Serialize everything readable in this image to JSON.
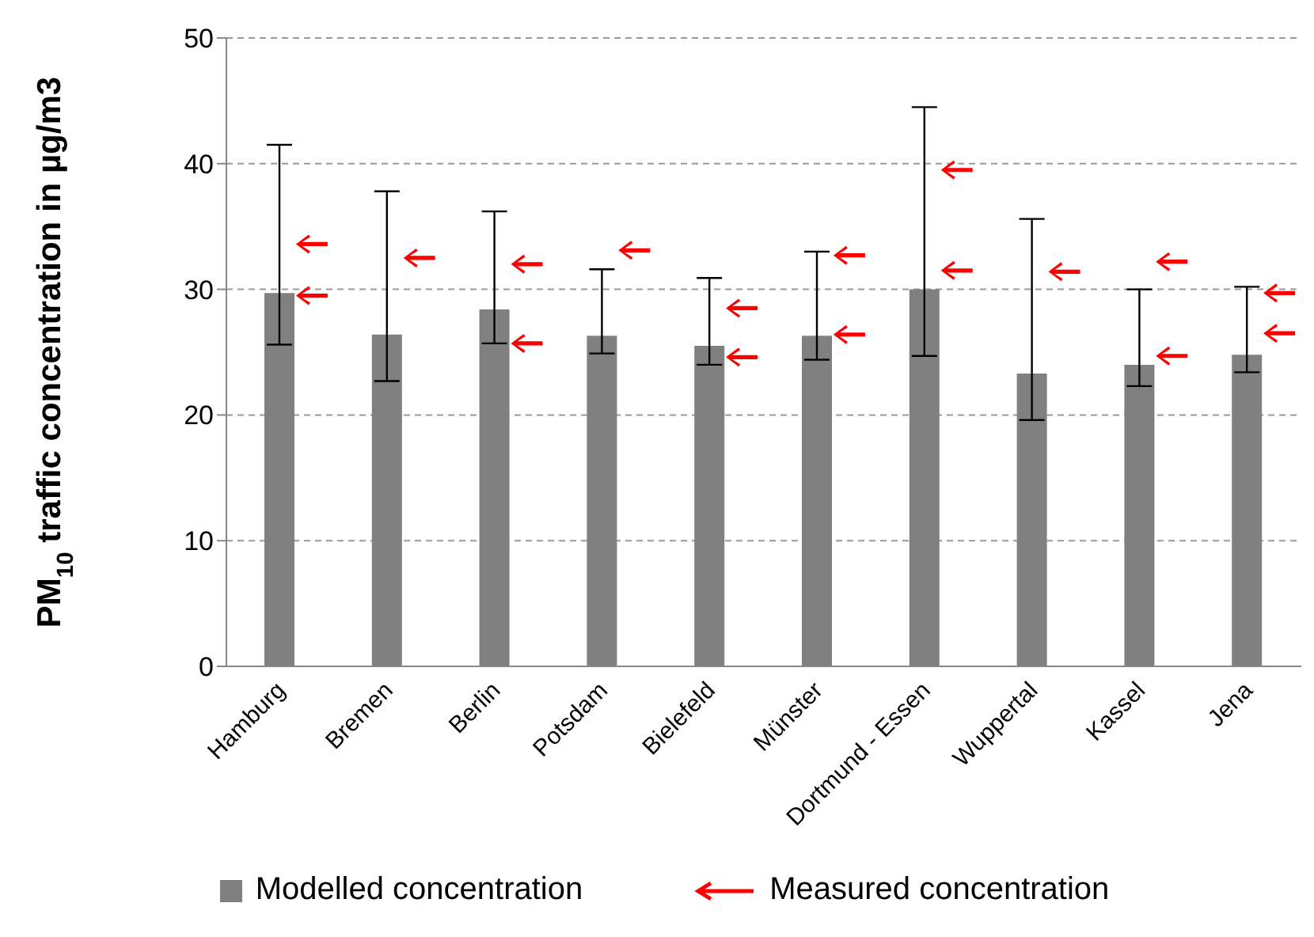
{
  "chart_data": {
    "type": "bar",
    "ylabel": "PM$_{10}$ traffic concentration in µg/m3",
    "categories": [
      "Hamburg",
      "Bremen",
      "Berlin",
      "Potsdam",
      "Bielefeld",
      "Münster",
      "Dortmund - Essen",
      "Wuppertal",
      "Kassel",
      "Jena"
    ],
    "series": [
      {
        "type": "bar",
        "name": "Modelled concentration",
        "color": "#808080",
        "values": [
          29.7,
          26.4,
          28.4,
          26.3,
          25.5,
          26.3,
          30.0,
          23.3,
          24.0,
          24.8
        ],
        "errors": [
          [
            25.6,
            41.5
          ],
          [
            22.7,
            37.8
          ],
          [
            25.7,
            36.2
          ],
          [
            24.9,
            31.6
          ],
          [
            24.0,
            30.9
          ],
          [
            24.4,
            33.0
          ],
          [
            24.7,
            44.5
          ],
          [
            19.6,
            35.6
          ],
          [
            22.3,
            30.0
          ],
          [
            23.4,
            30.2
          ]
        ]
      },
      {
        "type": "scatter",
        "name": "Measured concentration",
        "color": "#ff0000",
        "x": [
          "Hamburg",
          "Hamburg",
          "Bremen",
          "Berlin",
          "Berlin",
          "Potsdam",
          "Bielefeld",
          "Bielefeld",
          "Münster",
          "Münster",
          "Dortmund - Essen",
          "Dortmund - Essen",
          "Wuppertal",
          "Kassel",
          "Kassel",
          "Jena",
          "Jena"
        ],
        "values": [
          33.6,
          29.5,
          32.5,
          32.0,
          25.7,
          33.1,
          28.5,
          24.6,
          32.7,
          26.4,
          39.5,
          31.5,
          31.4,
          32.2,
          24.7,
          29.7,
          26.5
        ]
      }
    ],
    "ylim": [
      0,
      50
    ],
    "yticks": [
      0,
      10,
      20,
      30,
      40,
      50
    ],
    "grid": "y",
    "legend": "bottom"
  }
}
